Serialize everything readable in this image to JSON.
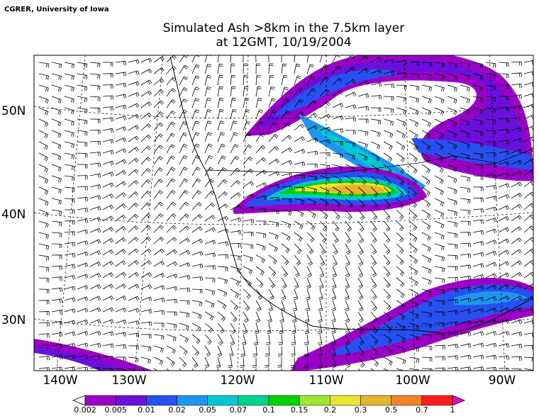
{
  "credit": "CGRER, University of Iowa",
  "title": {
    "line1": "Simulated Ash  >8km in the 7.5km layer",
    "line2": "at 12GMT, 10/19/2004"
  },
  "latitude_labels": [
    "50N",
    "40N",
    "30N"
  ],
  "longitude_labels": [
    "140W",
    "130W",
    "120W",
    "110W",
    "100W",
    "90W"
  ],
  "colorbar": {
    "levels": [
      0.002,
      0.005,
      0.01,
      0.02,
      0.05,
      0.07,
      0.1,
      0.15,
      0.2,
      0.3,
      0.5,
      0.7,
      1
    ],
    "colors": [
      "#9a00c8",
      "#6a10dc",
      "#2850f0",
      "#1e96f0",
      "#00c8d2",
      "#00d28c",
      "#00d200",
      "#a0e632",
      "#e6e632",
      "#e6b42d",
      "#f08228",
      "#fa1e1e"
    ],
    "under_color": "#ffffff",
    "over_color": "#f000c8"
  }
}
